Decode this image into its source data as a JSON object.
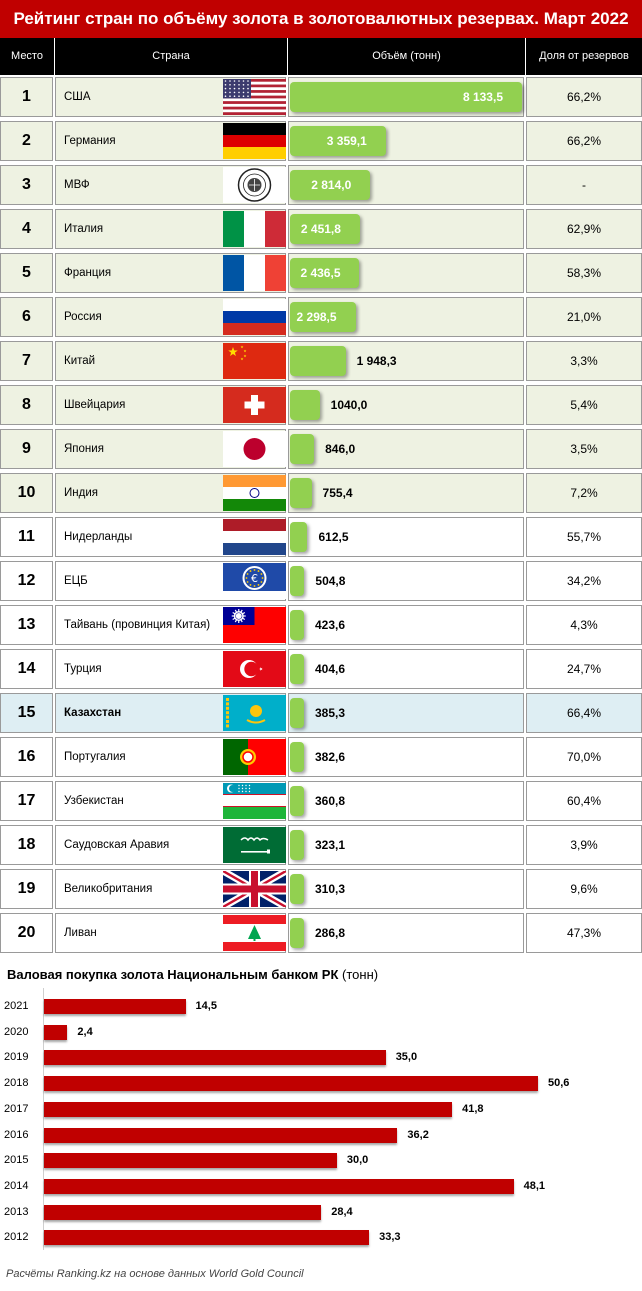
{
  "title": "Рейтинг стран по объёму золота в золотовалютных резервах. Март 2022",
  "headers": {
    "rank": "Место",
    "country": "Страна",
    "volume": "Объём (тонн)",
    "share": "Доля от резервов"
  },
  "colors": {
    "title_bg": "#c00000",
    "bar_green": "#92d050",
    "bar_red": "#c00000",
    "highlight_top10": "#eef2e2",
    "highlight_kz": "#deeef3"
  },
  "chart_data": [
    {
      "type": "table",
      "title": "Рейтинг стран по объёму золота в золотовалютных резервах. Март 2022",
      "columns": [
        "Место",
        "Страна",
        "Объём (тонн)",
        "Доля от резервов"
      ],
      "rows": [
        {
          "rank": "1",
          "country": "США",
          "flag": "usa-flag-icon",
          "value": 8133.5,
          "value_label": "8 133,5",
          "share": "66,2%"
        },
        {
          "rank": "2",
          "country": "Германия",
          "flag": "germany-flag-icon",
          "value": 3359.1,
          "value_label": "3 359,1",
          "share": "66,2%"
        },
        {
          "rank": "3",
          "country": "МВФ",
          "flag": "imf-seal-icon",
          "value": 2814.0,
          "value_label": "2 814,0",
          "share": "-"
        },
        {
          "rank": "4",
          "country": "Италия",
          "flag": "italy-flag-icon",
          "value": 2451.8,
          "value_label": "2 451,8",
          "share": "62,9%"
        },
        {
          "rank": "5",
          "country": "Франция",
          "flag": "france-flag-icon",
          "value": 2436.5,
          "value_label": "2 436,5",
          "share": "58,3%"
        },
        {
          "rank": "6",
          "country": "Россия",
          "flag": "russia-flag-icon",
          "value": 2298.5,
          "value_label": "2 298,5",
          "share": "21,0%"
        },
        {
          "rank": "7",
          "country": "Китай",
          "flag": "china-flag-icon",
          "value": 1948.3,
          "value_label": "1 948,3",
          "share": "3,3%"
        },
        {
          "rank": "8",
          "country": "Швейцария",
          "flag": "switzerland-flag-icon",
          "value": 1040.0,
          "value_label": "1040,0",
          "share": "5,4%"
        },
        {
          "rank": "9",
          "country": "Япония",
          "flag": "japan-flag-icon",
          "value": 846.0,
          "value_label": "846,0",
          "share": "3,5%"
        },
        {
          "rank": "10",
          "country": "Индия",
          "flag": "india-flag-icon",
          "value": 755.4,
          "value_label": "755,4",
          "share": "7,2%"
        },
        {
          "rank": "11",
          "country": "Нидерланды",
          "flag": "netherlands-flag-icon",
          "value": 612.5,
          "value_label": "612,5",
          "share": "55,7%"
        },
        {
          "rank": "12",
          "country": "ЕЦБ",
          "flag": "ecb-logo-icon",
          "value": 504.8,
          "value_label": "504,8",
          "share": "34,2%"
        },
        {
          "rank": "13",
          "country": "Тайвань (провинция Китая)",
          "flag": "taiwan-flag-icon",
          "value": 423.6,
          "value_label": "423,6",
          "share": "4,3%"
        },
        {
          "rank": "14",
          "country": "Турция",
          "flag": "turkey-flag-icon",
          "value": 404.6,
          "value_label": "404,6",
          "share": "24,7%"
        },
        {
          "rank": "15",
          "country": "Казахстан",
          "flag": "kazakhstan-flag-icon",
          "value": 385.3,
          "value_label": "385,3",
          "share": "66,4%"
        },
        {
          "rank": "16",
          "country": "Португалия",
          "flag": "portugal-flag-icon",
          "value": 382.6,
          "value_label": "382,6",
          "share": "70,0%"
        },
        {
          "rank": "17",
          "country": "Узбекистан",
          "flag": "uzbekistan-flag-icon",
          "value": 360.8,
          "value_label": "360,8",
          "share": "60,4%"
        },
        {
          "rank": "18",
          "country": "Саудовская Аравия",
          "flag": "saudi-arabia-flag-icon",
          "value": 323.1,
          "value_label": "323,1",
          "share": "3,9%"
        },
        {
          "rank": "19",
          "country": "Великобритания",
          "flag": "uk-flag-icon",
          "value": 310.3,
          "value_label": "310,3",
          "share": "9,6%"
        },
        {
          "rank": "20",
          "country": "Ливан",
          "flag": "lebanon-flag-icon",
          "value": 286.8,
          "value_label": "286,8",
          "share": "47,3%"
        }
      ]
    },
    {
      "type": "bar",
      "orientation": "horizontal",
      "title": "Валовая покупка золота Национальным банком РК",
      "unit": "(тонн)",
      "categories": [
        "2021",
        "2020",
        "2019",
        "2018",
        "2017",
        "2016",
        "2015",
        "2014",
        "2013",
        "2012"
      ],
      "values": [
        14.5,
        2.4,
        35.0,
        50.6,
        41.8,
        36.2,
        30.0,
        48.1,
        28.4,
        33.3
      ],
      "value_labels": [
        "14,5",
        "2,4",
        "35,0",
        "50,6",
        "41,8",
        "36,2",
        "30,0",
        "48,1",
        "28,4",
        "33,3"
      ],
      "xlim": [
        0,
        60
      ],
      "grid": false
    }
  ],
  "footer": "Расчёты Ranking.kz на основе данных World Gold Council"
}
